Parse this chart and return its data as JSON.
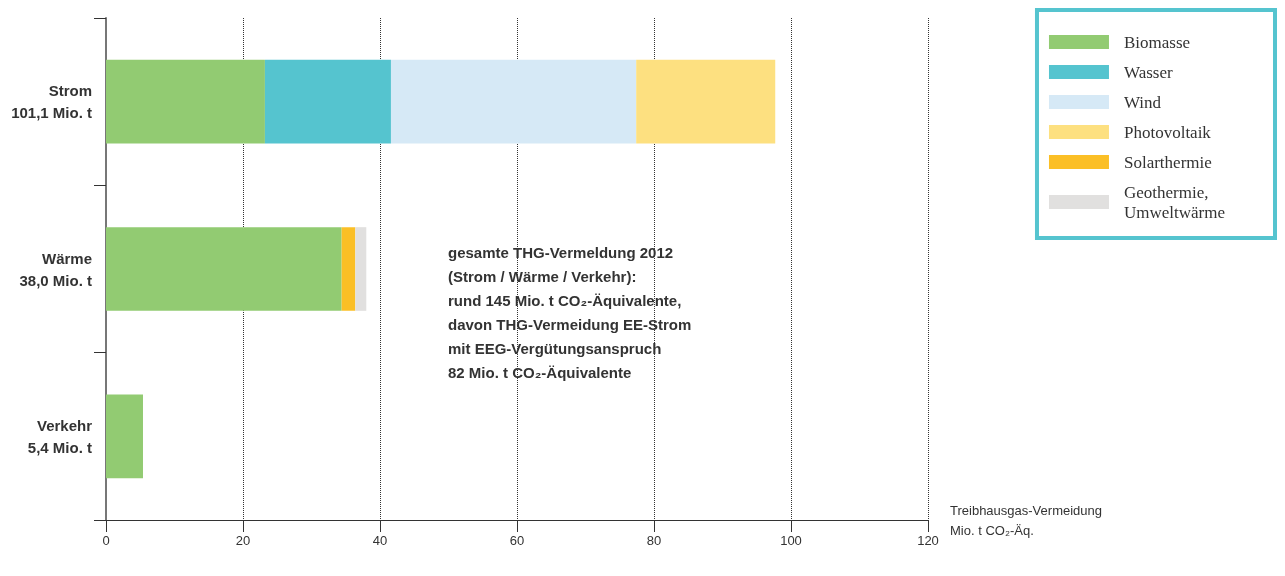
{
  "chart_data": {
    "type": "bar",
    "orientation": "horizontal",
    "stacked": true,
    "categories": [
      "Strom\n101,1 Mio. t",
      "Wärme\n38,0 Mio. t",
      "Verkehr\n5,4 Mio. t"
    ],
    "series": [
      {
        "name": "Biomasse",
        "color": "#92cb72",
        "values": [
          23.2,
          34.4,
          5.4
        ]
      },
      {
        "name": "Wasser",
        "color": "#55c4cf",
        "values": [
          18.4,
          null,
          null
        ]
      },
      {
        "name": "Wind",
        "color": "#d6e9f6",
        "values": [
          35.8,
          null,
          null
        ]
      },
      {
        "name": "Photovoltaik",
        "color": "#fde080",
        "values": [
          20.3,
          null,
          null
        ]
      },
      {
        "name": "Solarthermie",
        "color": "#fbbf26",
        "values": [
          null,
          2.0,
          null
        ]
      },
      {
        "name": "Geothermie,\nUmweltwärme",
        "color": "#e1e0df",
        "values": [
          null,
          1.6,
          null
        ]
      }
    ],
    "xlim": [
      0,
      120
    ],
    "xticks": [
      0,
      20,
      40,
      60,
      80,
      100,
      120
    ],
    "xlabel": "Treibhausgas-Vermeidung\nMio. t CO₂-Äq.",
    "annotations": [
      "gesamte THG-Vermeldung 2012\n(Strom / Wärme / Verkehr):\nrund 145 Mio. t CO₂-Äquivalente,\ndavon THG-Vermeidung EE-Strom\nmit EEG-Vergütungsanspruch\n82 Mio. t CO₂-Äquivalente"
    ],
    "grid": "x",
    "legend": "top right"
  }
}
